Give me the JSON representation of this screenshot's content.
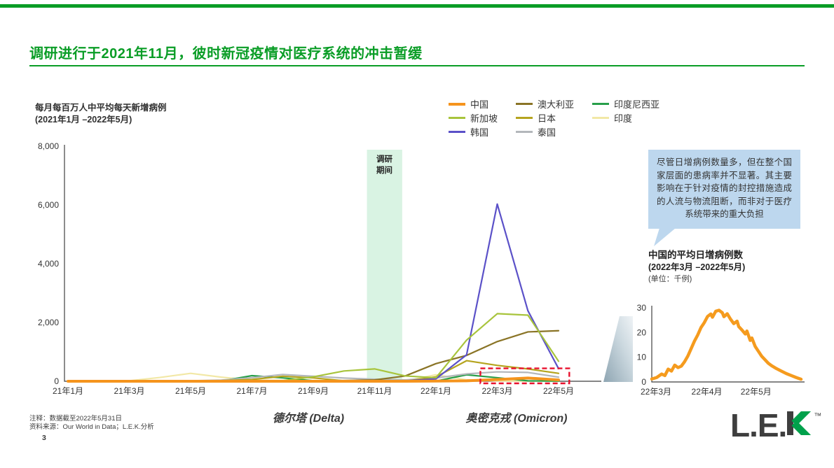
{
  "page": {
    "accent_color": "#0A9D26",
    "title": "调研进行于2021年11月，彼时新冠疫情对医疗系统的冲击暂缓",
    "page_number": "3",
    "footnote_note": "注释：数据截至2022年5月31日",
    "footnote_source": "资料来源：Our World in Data；L.E.K.分析",
    "logo": {
      "prefix": "L.E.",
      "k": "K",
      "tm": "™"
    }
  },
  "survey_band": {
    "label": "调研\n期间",
    "color": "#D9F3E3"
  },
  "annotations": {
    "delta": "德尔塔 (Delta)",
    "omicron": "奥密克戎 (Omicron)"
  },
  "callout": {
    "text": "尽管日增病例数量多，但在整个国家层面的患病率并不显著。其主要影响在于针对疫情的封控措施造成的人流与物流阻断，而非对于医疗系统带来的重大负担",
    "bg_color": "#BDD7EE"
  },
  "chart_data": [
    {
      "name": "main",
      "type": "line",
      "title": "每月每百万人中平均每天新增病例",
      "subtitle": "(2021年1月 –2022年5月)",
      "ylim": [
        0,
        8000
      ],
      "y_ticks": [
        0,
        2000,
        4000,
        6000,
        8000
      ],
      "x_tick_labels": [
        "21年1月",
        "21年3月",
        "21年5月",
        "21年7月",
        "21年9月",
        "21年11月",
        "22年1月",
        "22年3月",
        "22年5月"
      ],
      "months_span": "2021-01 to 2022-05 (17 monthly points)",
      "grid": false,
      "legend_columns": [
        [
          "china",
          "singapore",
          "korea"
        ],
        [
          "australia",
          "japan",
          "thailand"
        ],
        [
          "indonesia",
          "india"
        ]
      ],
      "survey_band_months": [
        9.75,
        10.9
      ],
      "highlight_box": {
        "color": "#E8112D",
        "month_start": 13.45,
        "month_end": 16.35,
        "value_top": 440
      },
      "series": [
        {
          "key": "india",
          "name": "印度",
          "color": "#F2E8A6",
          "width": 2.2,
          "values": [
            15,
            10,
            15,
            130,
            270,
            140,
            35,
            30,
            25,
            15,
            10,
            8,
            220,
            50,
            10,
            5,
            4
          ]
        },
        {
          "key": "indonesia",
          "name": "印度尼西亚",
          "color": "#279F4A",
          "width": 2.2,
          "values": [
            15,
            10,
            8,
            6,
            5,
            10,
            190,
            115,
            20,
            5,
            2,
            2,
            4,
            220,
            120,
            15,
            4
          ]
        },
        {
          "key": "thailand",
          "name": "泰国",
          "color": "#B3B7BB",
          "width": 2.2,
          "values": [
            5,
            3,
            2,
            3,
            15,
            40,
            120,
            230,
            170,
            110,
            70,
            45,
            110,
            250,
            320,
            300,
            140
          ]
        },
        {
          "key": "japan",
          "name": "日本",
          "color": "#B5A41E",
          "width": 2.2,
          "values": [
            12,
            6,
            4,
            9,
            15,
            20,
            60,
            170,
            115,
            15,
            3,
            2,
            150,
            700,
            540,
            420,
            270
          ]
        },
        {
          "key": "australia",
          "name": "澳大利亚",
          "color": "#8A7426",
          "width": 2.2,
          "values": [
            2,
            1,
            1,
            1,
            1,
            1,
            3,
            8,
            15,
            25,
            45,
            180,
            600,
            880,
            1350,
            1680,
            1720
          ]
        },
        {
          "key": "korea",
          "name": "韩国",
          "color": "#5B51C8",
          "width": 2.2,
          "values": [
            1,
            1,
            1,
            2,
            2,
            3,
            5,
            8,
            10,
            8,
            10,
            15,
            80,
            900,
            6030,
            2400,
            430
          ]
        },
        {
          "key": "singapore",
          "name": "新加坡",
          "color": "#A8C43C",
          "width": 2.2,
          "values": [
            5,
            3,
            3,
            4,
            10,
            15,
            22,
            18,
            150,
            350,
            420,
            180,
            120,
            1400,
            2300,
            2250,
            680
          ]
        },
        {
          "key": "china",
          "name": "中国",
          "color": "#F5941D",
          "width": 4,
          "values": [
            1,
            1,
            1,
            1,
            1,
            1,
            1,
            1,
            1,
            1,
            1,
            1,
            5,
            15,
            60,
            110,
            45
          ]
        }
      ]
    },
    {
      "name": "china_detail",
      "type": "line",
      "title": "中国的平均日增病例数",
      "subtitle": "(2022年3月 –2022年5月)",
      "unit": "(单位：千例)",
      "ylim": [
        0,
        30
      ],
      "y_ticks": [
        0,
        10,
        20,
        30
      ],
      "x_tick_labels": [
        "22年3月",
        "22年4月",
        "22年5月"
      ],
      "x_tick_days": [
        0,
        31,
        61
      ],
      "series_color": "#F59B1E",
      "series_width": 4.5,
      "points": [
        [
          0,
          1.2
        ],
        [
          3,
          1.8
        ],
        [
          6,
          3.2
        ],
        [
          8,
          2.6
        ],
        [
          10,
          5.2
        ],
        [
          12,
          4.4
        ],
        [
          14,
          6.8
        ],
        [
          16,
          5.8
        ],
        [
          18,
          6.4
        ],
        [
          20,
          8.2
        ],
        [
          22,
          10.5
        ],
        [
          24,
          13.5
        ],
        [
          26,
          16.5
        ],
        [
          28,
          19
        ],
        [
          30,
          22
        ],
        [
          32,
          24
        ],
        [
          34,
          26.5
        ],
        [
          36,
          27.5
        ],
        [
          37,
          26.2
        ],
        [
          39,
          28.6
        ],
        [
          41,
          29
        ],
        [
          43,
          28
        ],
        [
          44,
          26.4
        ],
        [
          46,
          27.6
        ],
        [
          48,
          25.4
        ],
        [
          50,
          23.6
        ],
        [
          52,
          24.6
        ],
        [
          53,
          22.4
        ],
        [
          55,
          21
        ],
        [
          57,
          19.4
        ],
        [
          58,
          20.6
        ],
        [
          60,
          16.8
        ],
        [
          61,
          17.8
        ],
        [
          63,
          14.4
        ],
        [
          65,
          12.4
        ],
        [
          67,
          10.4
        ],
        [
          69,
          9
        ],
        [
          71,
          7.6
        ],
        [
          73,
          6.6
        ],
        [
          76,
          5.4
        ],
        [
          79,
          4.4
        ],
        [
          82,
          3.4
        ],
        [
          85,
          2.6
        ],
        [
          88,
          1.8
        ],
        [
          91,
          1.1
        ]
      ]
    }
  ]
}
